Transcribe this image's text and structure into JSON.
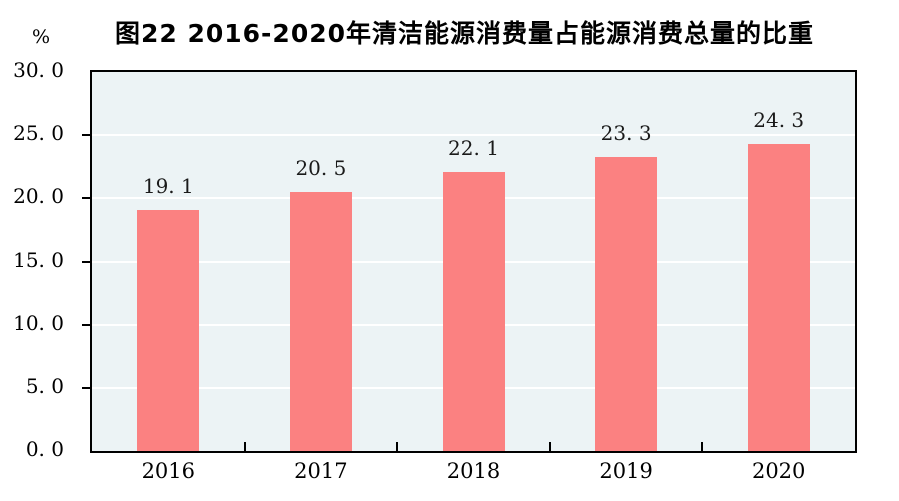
{
  "chart_data": {
    "type": "bar",
    "title": "图22  2016-2020年清洁能源消费量占能源消费总量的比重",
    "unit": "%",
    "categories": [
      "2016",
      "2017",
      "2018",
      "2019",
      "2020"
    ],
    "values": [
      19.1,
      20.5,
      22.1,
      23.3,
      24.3
    ],
    "value_labels": [
      "19. 1",
      "20. 5",
      "22. 1",
      "23. 3",
      "24. 3"
    ],
    "xlabel": "",
    "ylabel": "%",
    "ylim": [
      0,
      30
    ],
    "yticks": [
      0,
      5,
      10,
      15,
      20,
      25,
      30
    ],
    "ytick_labels": [
      "0. 0",
      "5. 0",
      "10. 0",
      "15. 0",
      "20. 0",
      "25. 0",
      "30. 0"
    ],
    "grid": true,
    "legend_position": "none",
    "colors": {
      "bar": "#FB8181",
      "plot_background": "#ECF3F5",
      "gridline": "#FFFFFF",
      "axis": "#000000",
      "page_background": "#FFFFFF"
    }
  }
}
